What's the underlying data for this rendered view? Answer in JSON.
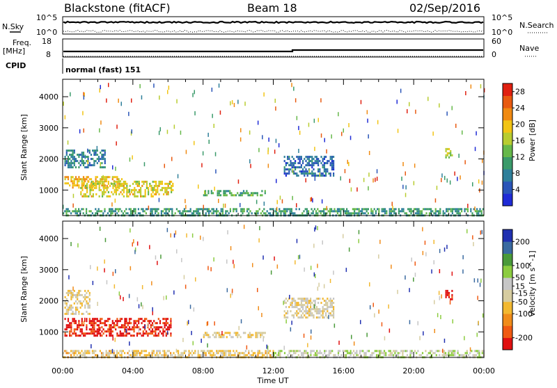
{
  "header": {
    "station": "Blackstone (fitACF)",
    "beam": "Beam 18",
    "date": "02/Sep/2016"
  },
  "nsky_panel": {
    "left_label": "N.Sky",
    "left_ticks": [
      "10^5",
      "10^0"
    ],
    "right_label": "N.Search",
    "right_ticks": [
      "10^5",
      "10^0"
    ]
  },
  "freq_panel": {
    "left_label_1": "Freq.",
    "left_label_2": "[MHz]",
    "left_ticks": [
      "18",
      "8"
    ],
    "right_label": "Nave",
    "right_ticks": [
      "60",
      "0"
    ],
    "cpid_label": "CPID",
    "mode_text": "normal (fast) 151"
  },
  "colors": {
    "power_scale": [
      "#1f2bd6",
      "#2a55b8",
      "#2e7f9a",
      "#3a9a6a",
      "#66b84a",
      "#b8cc30",
      "#f2c414",
      "#f08a12",
      "#e85a10",
      "#e02010"
    ],
    "velocity_scale": [
      "#e01010",
      "#f05a12",
      "#f08c1a",
      "#f2b830",
      "#d6cca0",
      "#c6c6c6",
      "#8ccc40",
      "#4a9a3a",
      "#3a6aa0",
      "#2030b0"
    ]
  },
  "chart_data": [
    {
      "type": "heatmap",
      "title": "",
      "xlabel": "",
      "ylabel": "Slant Range [km]",
      "x_ticks": [
        "00:00",
        "04:00",
        "08:00",
        "12:00",
        "16:00",
        "20:00",
        "00:00"
      ],
      "y_ticks": [
        1000,
        2000,
        3000,
        4000
      ],
      "ylim": [
        180,
        4560
      ],
      "xlim_hours": [
        0,
        24
      ],
      "colorbar": {
        "label": "Power [dB]",
        "ticks": [
          4,
          8,
          12,
          16,
          20,
          24,
          28
        ],
        "range": [
          0,
          30
        ]
      },
      "regions": [
        {
          "t0": 0.1,
          "t1": 3.4,
          "r0": 1050,
          "r1": 1450,
          "value": 20
        },
        {
          "t0": 1.0,
          "t1": 6.3,
          "r0": 820,
          "r1": 1300,
          "value": 18
        },
        {
          "t0": 0.1,
          "t1": 2.4,
          "r0": 1700,
          "r1": 2300,
          "value": 8
        },
        {
          "t0": 8.0,
          "t1": 11.5,
          "r0": 850,
          "r1": 1000,
          "value": 12
        },
        {
          "t0": 0.0,
          "t1": 24.0,
          "r0": 200,
          "r1": 420,
          "value": 10
        },
        {
          "t0": 21.8,
          "t1": 22.2,
          "r0": 2050,
          "r1": 2350,
          "value": 16
        },
        {
          "t0": 12.6,
          "t1": 15.4,
          "r0": 1450,
          "r1": 2100,
          "value": 6
        }
      ]
    },
    {
      "type": "heatmap",
      "title": "",
      "xlabel": "Time UT",
      "ylabel": "Slant Range [km]",
      "x_ticks": [
        "00:00",
        "04:00",
        "08:00",
        "12:00",
        "16:00",
        "20:00",
        "00:00"
      ],
      "y_ticks": [
        1000,
        2000,
        3000,
        4000
      ],
      "ylim": [
        180,
        4560
      ],
      "xlim_hours": [
        0,
        24
      ],
      "colorbar": {
        "label": "Velocity [m s^-1]",
        "ticks": [
          -200,
          -100,
          -50,
          -15,
          15,
          50,
          100,
          200
        ],
        "range": [
          -250,
          250
        ]
      },
      "regions": [
        {
          "t0": 0.1,
          "t1": 6.2,
          "r0": 850,
          "r1": 1450,
          "value": -220
        },
        {
          "t0": 0.1,
          "t1": 1.5,
          "r0": 1600,
          "r1": 2350,
          "value": -30
        },
        {
          "t0": 8.0,
          "t1": 11.5,
          "r0": 850,
          "r1": 1000,
          "value": -40
        },
        {
          "t0": 0.0,
          "t1": 12.0,
          "r0": 200,
          "r1": 420,
          "value": -50
        },
        {
          "t0": 12.0,
          "t1": 24.0,
          "r0": 200,
          "r1": 420,
          "value": 30
        },
        {
          "t0": 21.8,
          "t1": 22.2,
          "r0": 2050,
          "r1": 2350,
          "value": -220
        },
        {
          "t0": 12.6,
          "t1": 15.4,
          "r0": 1450,
          "r1": 2100,
          "value": -10
        }
      ]
    }
  ]
}
